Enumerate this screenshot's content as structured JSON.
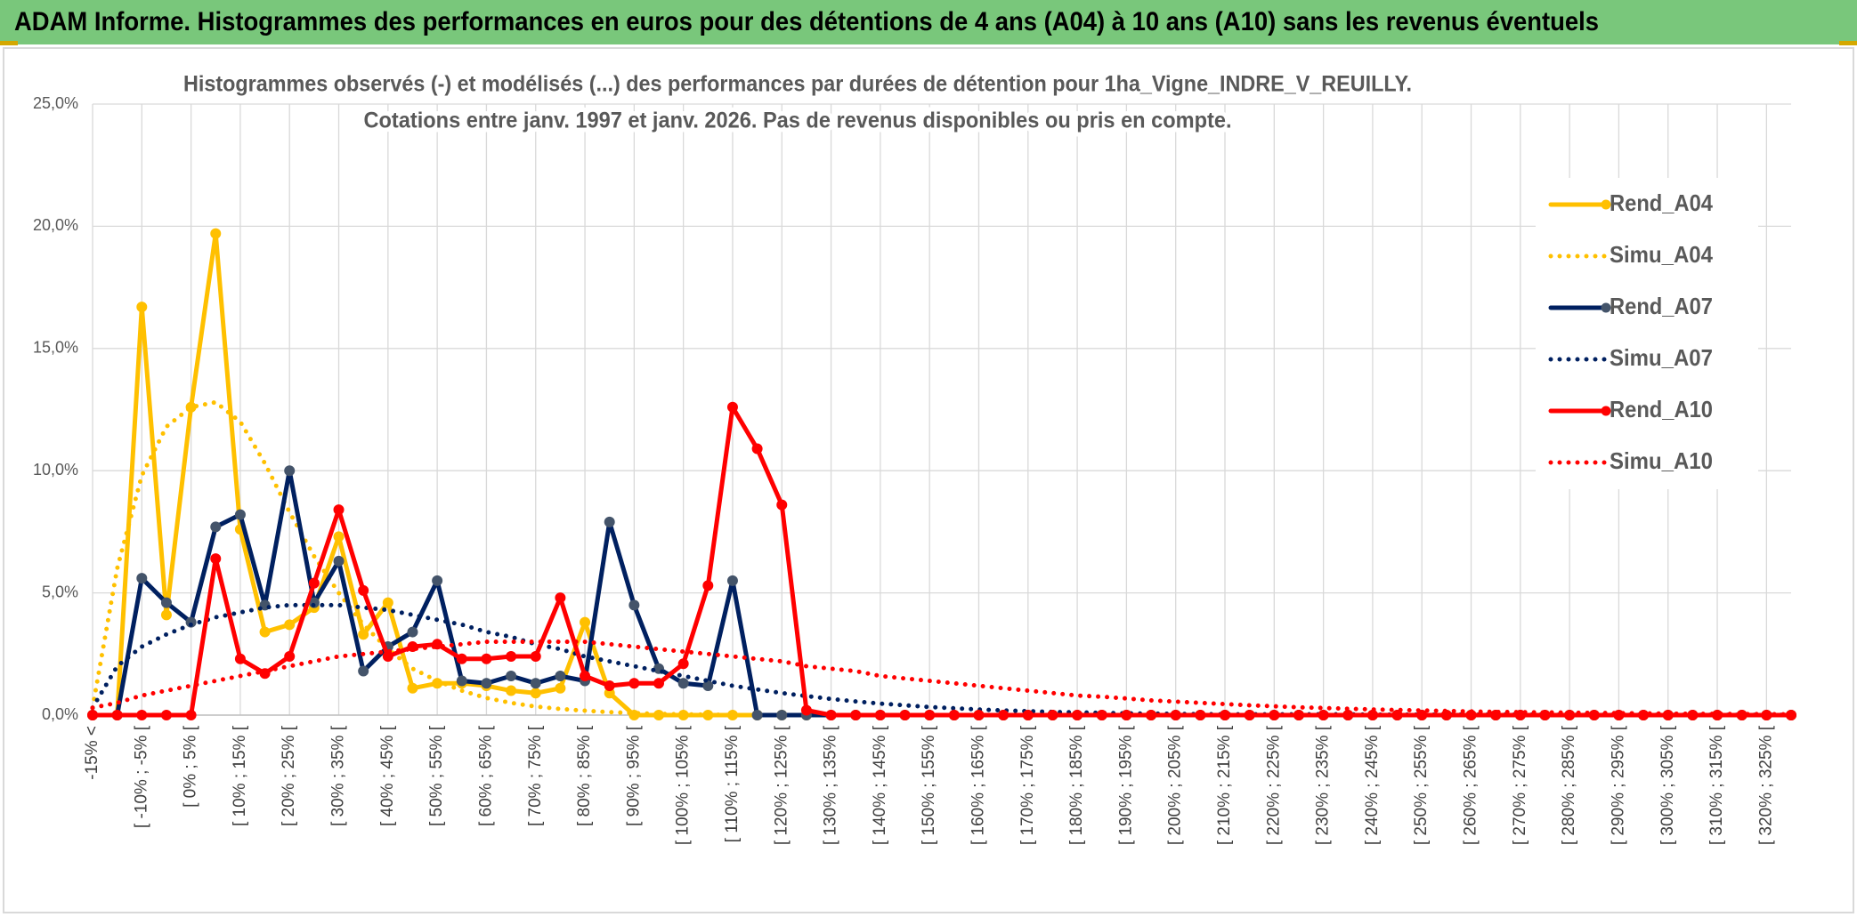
{
  "header": {
    "title": "ADAM Informe. Histogrammes des performances en euros pour des détentions de 4 ans (A04) à 10 ans (A10) sans les revenus éventuels"
  },
  "chart_data": {
    "type": "line",
    "title": "Histogrammes observés (-) et modélisés (...) des performances par durées de détention pour 1ha_Vigne_INDRE_V_REUILLY.",
    "subtitle": "Cotations entre janv. 1997 et janv. 2026. Pas de revenus disponibles ou pris en compte.",
    "categories": [
      "-15% <",
      null,
      "[ -10% ; -5% [",
      null,
      "[ 0% ; 5% [",
      null,
      "[ 10% ; 15% [",
      null,
      "[ 20% ; 25% [",
      null,
      "[ 30% ; 35% [",
      null,
      "[ 40% ; 45% [",
      null,
      "[ 50% ; 55% [",
      null,
      "[ 60% ; 65% [",
      null,
      "[ 70% ; 75% [",
      null,
      "[ 80% ; 85% [",
      null,
      "[ 90% ; 95% [",
      null,
      "[ 100% ; 105% [",
      null,
      "[ 110% ; 115% [",
      null,
      "[ 120% ; 125% [",
      null,
      "[ 130% ; 135% [",
      null,
      "[ 140% ; 145% [",
      null,
      "[ 150% ; 155% [",
      null,
      "[ 160% ; 165% [",
      null,
      "[ 170% ; 175% [",
      null,
      "[ 180% ; 185% [",
      null,
      "[ 190% ; 195% [",
      null,
      "[ 200% ; 205% [",
      null,
      "[ 210% ; 215% [",
      null,
      "[ 220% ; 225% [",
      null,
      "[ 230% ; 235% [",
      null,
      "[ 240% ; 245% [",
      null,
      "[ 250% ; 255% [",
      null,
      "[ 260% ; 265% [",
      null,
      "[ 270% ; 275% [",
      null,
      "[ 280% ; 285% [",
      null,
      "[ 290% ; 295% [",
      null,
      "[ 300% ; 305% [",
      null,
      "[ 310% ; 315% [",
      null,
      "[ 320% ; 325% [",
      null
    ],
    "series": [
      {
        "name": "Rend_A04",
        "color": "#ffc000",
        "line_style": "solid",
        "markers": true,
        "marker_color": "#ffc000",
        "values": [
          0,
          0,
          16.7,
          4.1,
          12.6,
          19.7,
          7.6,
          3.4,
          3.7,
          4.4,
          7.3,
          3.3,
          4.6,
          1.1,
          1.3,
          1.3,
          1.2,
          1.0,
          0.9,
          1.1,
          3.8,
          0.9,
          0,
          0,
          0,
          0,
          0,
          0,
          0,
          0,
          0,
          0,
          0,
          0,
          0,
          0,
          0,
          0,
          0,
          0,
          0,
          0,
          0,
          0,
          0,
          0,
          0,
          0,
          0,
          0,
          0,
          0,
          0,
          0,
          0,
          0,
          0,
          0,
          0,
          0,
          0,
          0,
          0,
          0,
          0,
          0,
          0,
          0,
          0,
          0
        ]
      },
      {
        "name": "Simu_A04",
        "color": "#ffc000",
        "line_style": "dotted",
        "markers": false,
        "values": [
          0.3,
          6.0,
          9.8,
          11.8,
          12.6,
          12.8,
          12.0,
          10.3,
          8.3,
          6.5,
          5.0,
          3.7,
          2.7,
          1.9,
          1.4,
          1.0,
          0.7,
          0.5,
          0.35,
          0.25,
          0.18,
          0.12,
          0.08,
          0.05,
          0.03,
          0.02,
          0,
          0,
          0,
          0,
          0,
          0,
          0,
          0,
          0,
          0,
          0,
          0,
          0,
          0,
          0,
          0,
          0,
          0,
          0,
          0,
          0,
          0,
          0,
          0,
          0,
          0,
          0,
          0,
          0,
          0,
          0,
          0,
          0,
          0,
          0,
          0,
          0,
          0,
          0,
          0,
          0,
          0,
          0,
          0
        ]
      },
      {
        "name": "Rend_A07",
        "color": "#002060",
        "line_style": "solid",
        "markers": true,
        "marker_color": "#44546a",
        "values": [
          0,
          0,
          5.6,
          4.6,
          3.8,
          7.7,
          8.2,
          4.5,
          10.0,
          4.6,
          6.3,
          1.8,
          2.8,
          3.4,
          5.5,
          1.4,
          1.3,
          1.6,
          1.3,
          1.6,
          1.4,
          7.9,
          4.5,
          1.9,
          1.3,
          1.2,
          5.5,
          0,
          0,
          0,
          0,
          0,
          0,
          0,
          0,
          0,
          0,
          0,
          0,
          0,
          0,
          0,
          0,
          0,
          0,
          0,
          0,
          0,
          0,
          0,
          0,
          0,
          0,
          0,
          0,
          0,
          0,
          0,
          0,
          0,
          0,
          0,
          0,
          0,
          0,
          0,
          0,
          0,
          0,
          0
        ]
      },
      {
        "name": "Simu_A07",
        "color": "#002060",
        "line_style": "dotted",
        "markers": false,
        "values": [
          0.3,
          2.0,
          2.8,
          3.3,
          3.7,
          4.0,
          4.2,
          4.4,
          4.5,
          4.5,
          4.5,
          4.4,
          4.3,
          4.1,
          3.9,
          3.7,
          3.4,
          3.2,
          2.9,
          2.7,
          2.4,
          2.2,
          2.0,
          1.8,
          1.6,
          1.4,
          1.2,
          1.05,
          0.9,
          0.78,
          0.66,
          0.56,
          0.47,
          0.4,
          0.33,
          0.28,
          0.23,
          0.19,
          0.16,
          0.13,
          0.11,
          0.09,
          0.07,
          0.06,
          0.05,
          0.04,
          0.03,
          0.03,
          0.03,
          0.03,
          0.03,
          0.03,
          0.02,
          0.02,
          0.02,
          0.02,
          0.02,
          0.02,
          0.02,
          0.02,
          0.01,
          0.01,
          0.01,
          0.01,
          0.01,
          0.01,
          0.01,
          0.01,
          0.01,
          0.01
        ]
      },
      {
        "name": "Rend_A10",
        "color": "#ff0000",
        "line_style": "solid",
        "markers": true,
        "marker_color": "#ff0000",
        "values": [
          0,
          0,
          0,
          0,
          0,
          6.4,
          2.3,
          1.7,
          2.4,
          5.4,
          8.4,
          5.1,
          2.4,
          2.8,
          2.9,
          2.3,
          2.3,
          2.4,
          2.4,
          4.8,
          1.6,
          1.2,
          1.3,
          1.3,
          2.1,
          5.3,
          12.6,
          10.9,
          8.6,
          0.2,
          0,
          0,
          0,
          0,
          0,
          0,
          0,
          0,
          0,
          0,
          0,
          0,
          0,
          0,
          0,
          0,
          0,
          0,
          0,
          0,
          0,
          0,
          0,
          0,
          0,
          0,
          0,
          0,
          0,
          0,
          0,
          0,
          0,
          0,
          0,
          0,
          0,
          0,
          0,
          0
        ]
      },
      {
        "name": "Simu_A10",
        "color": "#ff0000",
        "line_style": "dotted",
        "markers": false,
        "values": [
          0.3,
          0.5,
          0.8,
          1.0,
          1.2,
          1.4,
          1.6,
          1.8,
          2.0,
          2.2,
          2.4,
          2.5,
          2.6,
          2.7,
          2.8,
          2.9,
          3.0,
          3.0,
          3.0,
          3.0,
          3.0,
          2.9,
          2.8,
          2.7,
          2.6,
          2.5,
          2.4,
          2.3,
          2.2,
          2.0,
          1.9,
          1.8,
          1.6,
          1.5,
          1.4,
          1.3,
          1.2,
          1.1,
          1.0,
          0.9,
          0.8,
          0.75,
          0.68,
          0.6,
          0.55,
          0.5,
          0.45,
          0.4,
          0.36,
          0.32,
          0.29,
          0.26,
          0.23,
          0.21,
          0.19,
          0.17,
          0.15,
          0.13,
          0.12,
          0.11,
          0.1,
          0.09,
          0.08,
          0.07,
          0.06,
          0.05,
          0.05,
          0.04,
          0.04,
          0.03
        ]
      }
    ],
    "ylim": [
      0,
      25
    ],
    "yticks": [
      {
        "value": 0,
        "label": "0,0%"
      },
      {
        "value": 5,
        "label": "5,0%"
      },
      {
        "value": 10,
        "label": "10,0%"
      },
      {
        "value": 15,
        "label": "15,0%"
      },
      {
        "value": 20,
        "label": "20,0%"
      },
      {
        "value": 25,
        "label": "25,0%"
      }
    ],
    "grid": true,
    "legend": "right"
  }
}
